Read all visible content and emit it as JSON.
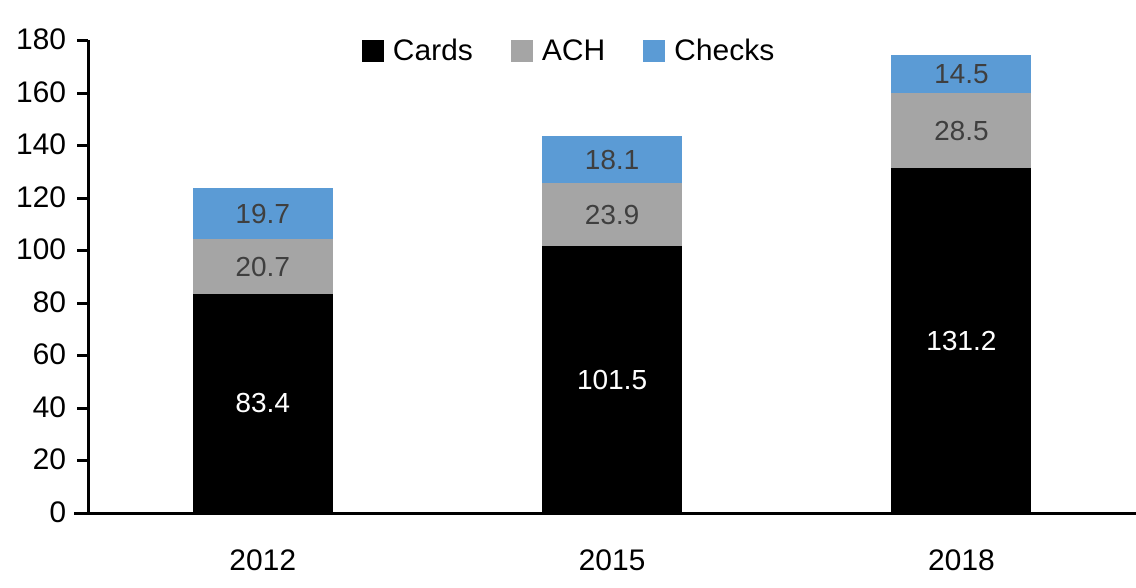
{
  "chart_data": {
    "type": "bar",
    "stacked": true,
    "categories": [
      "2012",
      "2015",
      "2018"
    ],
    "series": [
      {
        "name": "Cards",
        "color": "#000000",
        "label_color": "#ffffff",
        "values": [
          83.4,
          101.5,
          131.2
        ],
        "labels": [
          "83.4",
          "101.5",
          "131.2"
        ]
      },
      {
        "name": "ACH",
        "color": "#a5a5a5",
        "label_color": "#3f3f3f",
        "values": [
          20.7,
          23.9,
          28.5
        ],
        "labels": [
          "20.7",
          "23.9",
          "28.5"
        ]
      },
      {
        "name": "Checks",
        "color": "#5b9bd5",
        "label_color": "#3f3f3f",
        "values": [
          19.7,
          18.1,
          14.5
        ],
        "labels": [
          "19.7",
          "18.1",
          "14.5"
        ]
      }
    ],
    "title": "",
    "xlabel": "",
    "ylabel": "",
    "ylim": [
      0,
      180
    ],
    "ytick_step": 20,
    "ytick_labels": [
      "0",
      "20",
      "40",
      "60",
      "80",
      "100",
      "120",
      "140",
      "160",
      "180"
    ],
    "grid": false,
    "legend_position": "top-center",
    "axis_color": "#000000",
    "background_color": "#ffffff"
  }
}
